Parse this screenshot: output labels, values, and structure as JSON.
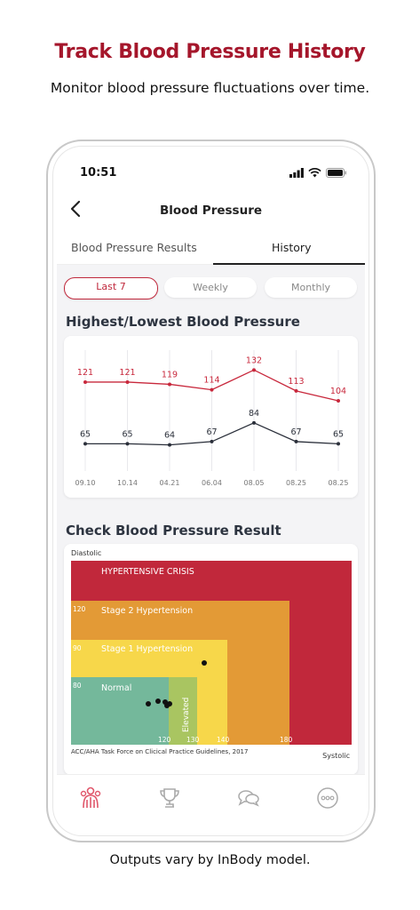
{
  "header": {
    "title": "Track Blood Pressure History",
    "subtitle": "Monitor blood pressure fluctuations over time."
  },
  "footer": {
    "note": "Outputs vary by InBody model."
  },
  "status_bar": {
    "time": "10:51"
  },
  "nav": {
    "title": "Blood Pressure",
    "back_icon": "chevron-left-icon"
  },
  "tabs": [
    {
      "label": "Blood Pressure Results",
      "active": false
    },
    {
      "label": "History",
      "active": true
    }
  ],
  "range_filters": [
    {
      "label": "Last 7",
      "active": true
    },
    {
      "label": "Weekly",
      "active": false
    },
    {
      "label": "Monthly",
      "active": false
    }
  ],
  "sections": {
    "history_title": "Highest/Lowest Blood Pressure",
    "check_title": "Check Blood Pressure Result"
  },
  "colors": {
    "brand": "#a5162b",
    "systolic_line": "#c8283c",
    "diastolic_line": "#2a2f3a",
    "crisis": "#c1283b",
    "stage2": "#e39a36",
    "stage1": "#f7d74a",
    "elevated": "#a9c561",
    "normal": "#74b89b"
  },
  "chart_data": {
    "type": "line",
    "categories": [
      "09.10",
      "10.14",
      "04.21",
      "06.04",
      "08.05",
      "08.25",
      "08.25"
    ],
    "series": [
      {
        "name": "",
        "values": [
          121,
          121,
          119,
          114,
          132,
          113,
          104
        ]
      },
      {
        "name": "",
        "values": [
          65,
          65,
          64,
          67,
          84,
          67,
          65
        ]
      }
    ],
    "title": "Highest/Lowest Blood Pressure",
    "grid": "vertical"
  },
  "bp_classification": {
    "y_label": "Diastolic",
    "x_label": "Systolic",
    "zones": [
      {
        "label": "HYPERTENSIVE CRISIS"
      },
      {
        "label": "Stage 2 Hypertension",
        "diastolic_tick": "120"
      },
      {
        "label": "Stage 1 Hypertension",
        "diastolic_tick": "90"
      },
      {
        "label": "Normal",
        "diastolic_tick": "80"
      },
      {
        "label": "Elevated"
      }
    ],
    "systolic_ticks": [
      "120",
      "130",
      "140",
      "180"
    ],
    "source": "ACC/AHA Task Force on Clicical Practice Guidelines, 2017"
  },
  "bottom_tabs": [
    {
      "icon": "body-icon",
      "active": true
    },
    {
      "icon": "trophy-icon",
      "active": false
    },
    {
      "icon": "chat-icon",
      "active": false
    },
    {
      "icon": "more-icon",
      "active": false
    }
  ]
}
